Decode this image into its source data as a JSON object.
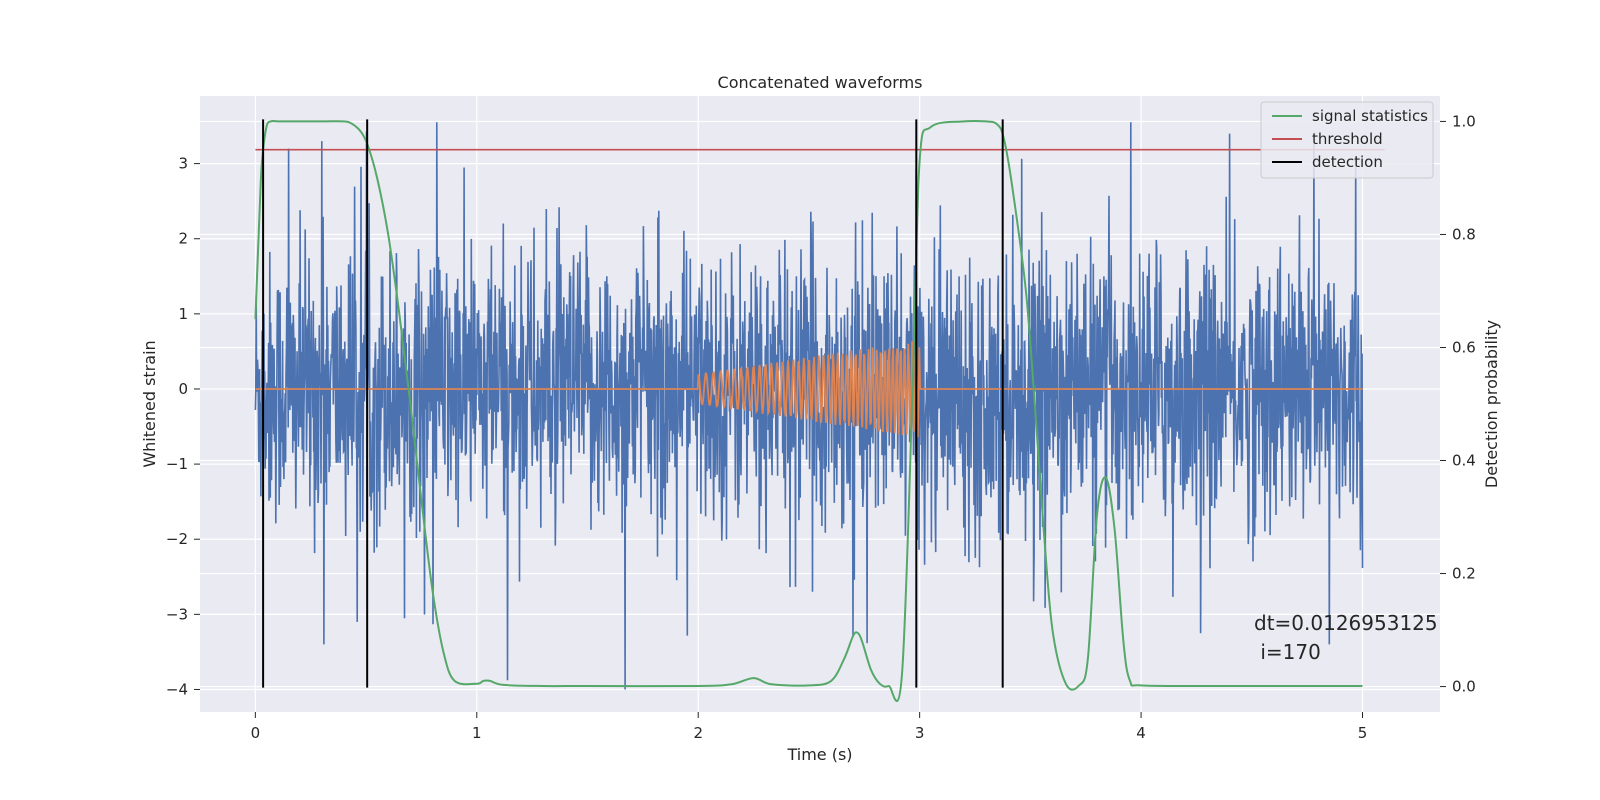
{
  "chart_data": {
    "type": "line",
    "title": "Concatenated waveforms",
    "xlabel": "Time (s)",
    "ylabel_left": "Whitened strain",
    "ylabel_right": "Detection probability",
    "xlim": [
      -0.25,
      5.35
    ],
    "ylim_left": [
      -4.3,
      3.9
    ],
    "ylim_right": [
      -0.045,
      1.045
    ],
    "x_ticks": [
      0,
      1,
      2,
      3,
      4,
      5
    ],
    "y_left_ticks": [
      -4,
      -3,
      -2,
      -1,
      0,
      1,
      2,
      3
    ],
    "y_right_ticks": [
      0.0,
      0.2,
      0.4,
      0.6,
      0.8,
      1.0
    ],
    "grid": true,
    "legend_position": "top-right",
    "legend": [
      {
        "name": "signal statistics",
        "color": "#55a868"
      },
      {
        "name": "threshold",
        "color": "#c44e52"
      },
      {
        "name": "detection",
        "color": "#000000"
      }
    ],
    "series": [
      {
        "kind": "noise",
        "axis": "left",
        "color": "#4c72b0",
        "x_range": [
          0,
          5
        ],
        "typical_amplitude": 1.2,
        "peak_spikes": [
          [
            0.3,
            3.3
          ],
          [
            0.82,
            3.55
          ],
          [
            0.15,
            3.2
          ],
          [
            4.4,
            3.4
          ],
          [
            4.78,
            3.3
          ],
          [
            4.97,
            3.1
          ],
          [
            1.67,
            -4.0
          ],
          [
            0.31,
            -3.4
          ],
          [
            0.46,
            -3.1
          ],
          [
            2.7,
            -3.3
          ],
          [
            4.85,
            -3.4
          ]
        ]
      },
      {
        "kind": "chirp",
        "axis": "left",
        "color": "#dd8452",
        "baseline": 0,
        "chirp_start": 2.0,
        "chirp_end": 3.0,
        "amplitude_start": 0.2,
        "amplitude_end": 0.65
      },
      {
        "name": "signal statistics",
        "axis": "right",
        "color": "#55a868",
        "x": [
          0.0,
          0.02,
          0.03,
          0.05,
          0.07,
          0.1,
          0.15,
          0.3,
          0.4,
          0.44,
          0.48,
          0.51,
          0.55,
          0.6,
          0.65,
          0.7,
          0.75,
          0.8,
          0.85,
          0.9,
          1.0,
          1.03,
          1.06,
          1.12,
          1.3,
          1.5,
          2.0,
          2.15,
          2.25,
          2.33,
          2.5,
          2.6,
          2.66,
          2.7,
          2.72,
          2.74,
          2.78,
          2.82,
          2.86,
          2.92,
          2.97,
          3.0,
          3.05,
          3.2,
          3.3,
          3.35,
          3.38,
          3.42,
          3.48,
          3.52,
          3.56,
          3.6,
          3.66,
          3.72,
          3.76,
          3.8,
          3.84,
          3.88,
          3.92,
          3.95,
          4.0,
          4.3,
          4.6,
          5.0
        ],
        "values": [
          0.65,
          0.85,
          0.93,
          0.99,
          1.0,
          1.0,
          1.0,
          1.0,
          1.0,
          0.995,
          0.98,
          0.955,
          0.9,
          0.8,
          0.66,
          0.5,
          0.33,
          0.17,
          0.06,
          0.01,
          0.005,
          0.01,
          0.01,
          0.003,
          0.001,
          0.001,
          0.001,
          0.004,
          0.015,
          0.004,
          0.002,
          0.01,
          0.05,
          0.09,
          0.095,
          0.08,
          0.03,
          0.005,
          0.001,
          0.02,
          0.55,
          0.93,
          0.99,
          1.0,
          1.0,
          0.995,
          0.97,
          0.88,
          0.7,
          0.5,
          0.28,
          0.1,
          0.005,
          0.002,
          0.05,
          0.3,
          0.37,
          0.28,
          0.08,
          0.01,
          0.002,
          0.001,
          0.001,
          0.001
        ]
      },
      {
        "name": "threshold",
        "axis": "right",
        "color": "#c44e52",
        "x": [
          0,
          5.1
        ],
        "values": [
          0.95,
          0.95
        ]
      }
    ],
    "detections": [
      0.035,
      0.505,
      2.985,
      3.375
    ]
  },
  "annotation": {
    "line1": "dt=0.0126953125",
    "line2": " i=170"
  }
}
